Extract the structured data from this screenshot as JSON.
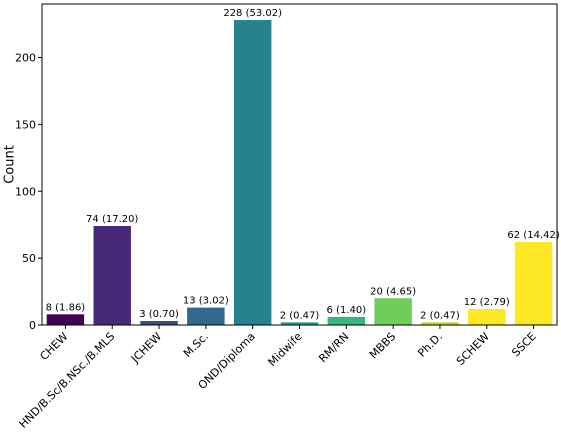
{
  "chart_data": {
    "type": "bar",
    "ylabel": "Count",
    "xlabel": "",
    "title": "",
    "ylim": [
      0,
      240
    ],
    "yticks": [
      0,
      50,
      100,
      150,
      200
    ],
    "grid": false,
    "categories": [
      "CHEW",
      "HND/B.Sc/B.NSc./B.MLS",
      "JCHEW",
      "M.Sc.",
      "OND/Diploma",
      "Midwife",
      "RM/RN",
      "MBBS",
      "Ph.D.",
      "SCHEW",
      "SSCE"
    ],
    "values": [
      8,
      74,
      3,
      13,
      228,
      2,
      6,
      20,
      2,
      12,
      62
    ],
    "data_labels": [
      "8 (1.86)",
      "74 (17.20)",
      "3 (0.70)",
      "13 (3.02)",
      "228 (53.02)",
      "2 (0.47)",
      "6 (1.40)",
      "20 (4.65)",
      "2 (0.47)",
      "12 (2.79)",
      "62 (14.42)"
    ],
    "colors": [
      "#440154",
      "#482878",
      "#3e4a89",
      "#31688e",
      "#26828e",
      "#1f9e89",
      "#35b779",
      "#6ece58",
      "#b5de2b",
      "#fde725",
      "#fde725"
    ]
  }
}
